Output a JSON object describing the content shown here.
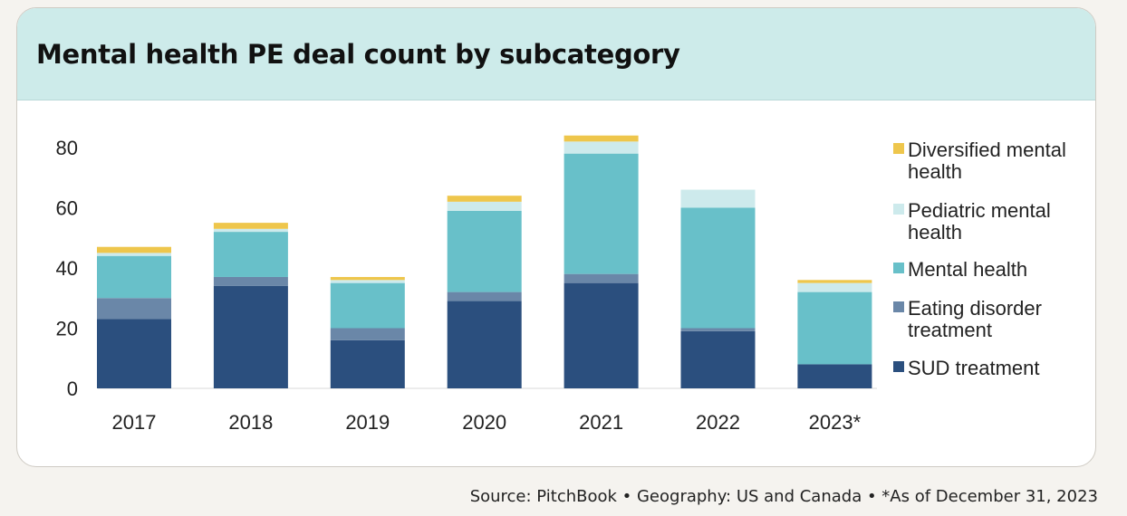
{
  "title": "Mental health PE deal count by subcategory",
  "source": "Source: PitchBook  •  Geography: US and Canada  •  *As of December 31, 2023",
  "colors": {
    "header_bg": "#cdebea",
    "sud_treatment": "#2b4f7e",
    "eating_disorder_treatment": "#6a87a8",
    "mental_health": "#68c0c9",
    "pediatric_mental_health": "#cdeaec",
    "diversified_mental_health": "#eec64c"
  },
  "chart_data": {
    "type": "bar",
    "stacked": true,
    "categories": [
      "2017",
      "2018",
      "2019",
      "2020",
      "2021",
      "2022",
      "2023*"
    ],
    "series": [
      {
        "name": "SUD treatment",
        "color": "#2b4f7e",
        "values": [
          23,
          34,
          16,
          29,
          35,
          19,
          8
        ]
      },
      {
        "name": "Eating disorder treatment",
        "color": "#6a87a8",
        "values": [
          7,
          3,
          4,
          3,
          3,
          1,
          0
        ]
      },
      {
        "name": "Mental health",
        "color": "#68c0c9",
        "values": [
          14,
          15,
          15,
          27,
          40,
          40,
          24
        ]
      },
      {
        "name": "Pediatric mental health",
        "color": "#cdeaec",
        "values": [
          1,
          1,
          1,
          3,
          4,
          6,
          3
        ]
      },
      {
        "name": "Diversified mental health",
        "color": "#eec64c",
        "values": [
          2,
          2,
          1,
          2,
          2,
          0,
          1
        ]
      }
    ],
    "legend_order": [
      "Diversified mental health",
      "Pediatric mental health",
      "Mental health",
      "Eating disorder treatment",
      "SUD treatment"
    ],
    "legend_labels": [
      [
        "Diversified mental",
        "health"
      ],
      [
        "Pediatric mental",
        "health"
      ],
      [
        "Mental health"
      ],
      [
        "Eating disorder",
        "treatment"
      ],
      [
        "SUD treatment"
      ]
    ],
    "yticks": [
      "0",
      "20",
      "40",
      "60",
      "80"
    ],
    "ylim": [
      0,
      80
    ],
    "xlabel": "",
    "ylabel": "",
    "grid": false,
    "legend_position": "right"
  }
}
